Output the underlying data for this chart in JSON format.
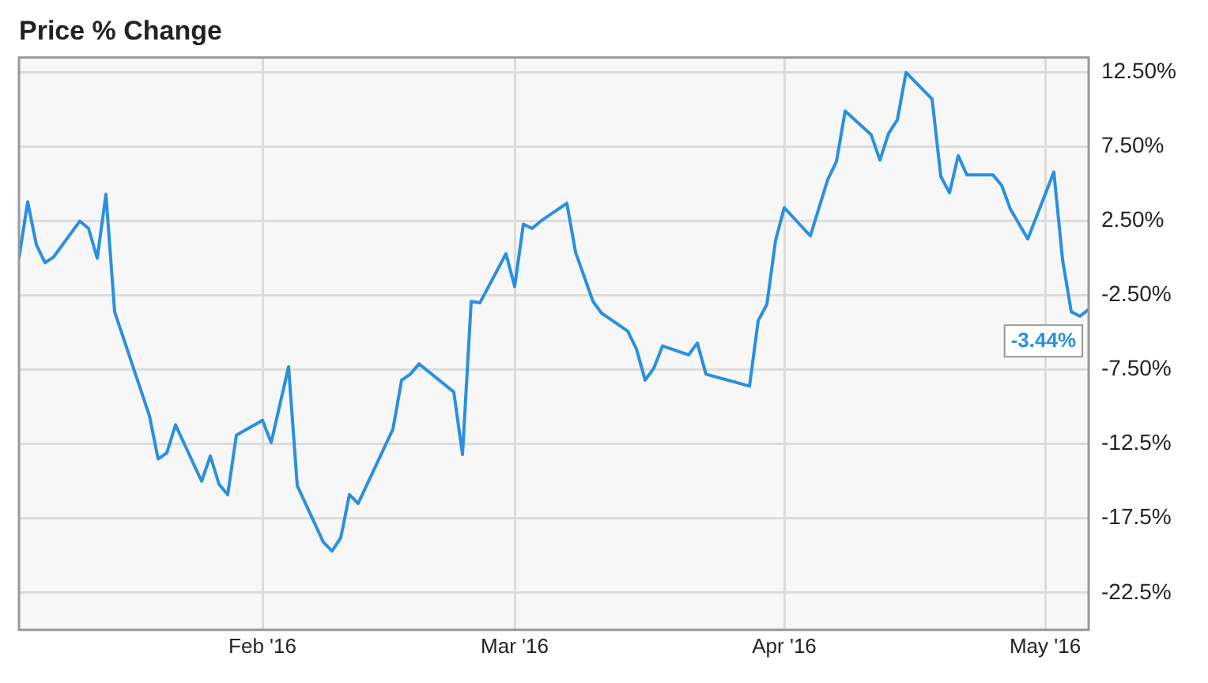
{
  "chart_data": {
    "type": "line",
    "title": "Price % Change",
    "x": [
      "2016-01-04",
      "2016-01-05",
      "2016-01-06",
      "2016-01-07",
      "2016-01-08",
      "2016-01-11",
      "2016-01-12",
      "2016-01-13",
      "2016-01-14",
      "2016-01-15",
      "2016-01-19",
      "2016-01-20",
      "2016-01-21",
      "2016-01-22",
      "2016-01-25",
      "2016-01-26",
      "2016-01-27",
      "2016-01-28",
      "2016-01-29",
      "2016-02-01",
      "2016-02-02",
      "2016-02-04",
      "2016-02-05",
      "2016-02-08",
      "2016-02-09",
      "2016-02-10",
      "2016-02-11",
      "2016-02-12",
      "2016-02-16",
      "2016-02-17",
      "2016-02-18",
      "2016-02-19",
      "2016-02-23",
      "2016-02-24",
      "2016-02-25",
      "2016-02-26",
      "2016-02-29",
      "2016-03-01",
      "2016-03-02",
      "2016-03-03",
      "2016-03-04",
      "2016-03-07",
      "2016-03-08",
      "2016-03-10",
      "2016-03-11",
      "2016-03-14",
      "2016-03-15",
      "2016-03-16",
      "2016-03-17",
      "2016-03-18",
      "2016-03-21",
      "2016-03-22",
      "2016-03-23",
      "2016-03-28",
      "2016-03-29",
      "2016-03-30",
      "2016-03-31",
      "2016-04-01",
      "2016-04-04",
      "2016-04-06",
      "2016-04-07",
      "2016-04-08",
      "2016-04-11",
      "2016-04-12",
      "2016-04-13",
      "2016-04-14",
      "2016-04-15",
      "2016-04-18",
      "2016-04-19",
      "2016-04-20",
      "2016-04-21",
      "2016-04-22",
      "2016-04-25",
      "2016-04-26",
      "2016-04-27",
      "2016-04-29",
      "2016-05-02",
      "2016-05-03",
      "2016-05-04",
      "2016-05-05",
      "2016-05-06"
    ],
    "series": [
      {
        "color": "#2a8fe0",
        "values": [
          0.0,
          3.8,
          0.9,
          -0.3,
          0.1,
          2.5,
          2.0,
          0.0,
          4.3,
          -3.6,
          -10.6,
          -13.5,
          -13.1,
          -11.2,
          -15.0,
          -13.3,
          -15.2,
          -15.9,
          -11.9,
          -10.9,
          -12.4,
          -7.3,
          -15.3,
          -19.1,
          -19.7,
          -18.8,
          -15.9,
          -16.5,
          -11.5,
          -8.2,
          -7.8,
          -7.1,
          -9.0,
          -13.2,
          -2.9,
          -3.0,
          0.3,
          -1.9,
          2.3,
          2.0,
          2.5,
          3.7,
          0.4,
          -2.9,
          -3.7,
          -4.9,
          -6.1,
          -8.2,
          -7.4,
          -5.9,
          -6.5,
          -5.7,
          -7.8,
          -8.6,
          -4.2,
          -3.1,
          1.2,
          3.4,
          1.5,
          5.3,
          6.5,
          9.9,
          8.3,
          6.6,
          8.4,
          9.3,
          12.5,
          10.7,
          5.5,
          4.4,
          6.9,
          5.6,
          5.6,
          4.9,
          3.3,
          1.3,
          5.8,
          -0.1,
          -3.6,
          -3.9,
          -3.44
        ]
      }
    ],
    "xlim": [
      "2016-01-04",
      "2016-05-06"
    ],
    "xticks": [
      {
        "value": "2016-02-01",
        "label": "Feb '16"
      },
      {
        "value": "2016-03-01",
        "label": "Mar '16"
      },
      {
        "value": "2016-04-01",
        "label": "Apr '16"
      },
      {
        "value": "2016-05-01",
        "label": "May '16"
      }
    ],
    "ylim": [
      -25,
      13.5
    ],
    "yticks": [
      {
        "value": -22.5,
        "label": "-22.5%"
      },
      {
        "value": -17.5,
        "label": "-17.5%"
      },
      {
        "value": -12.5,
        "label": "-12.5%"
      },
      {
        "value": -7.5,
        "label": "-7.50%"
      },
      {
        "value": -2.5,
        "label": "-2.50%"
      },
      {
        "value": 2.5,
        "label": "2.50%"
      },
      {
        "value": 7.5,
        "label": "7.50%"
      },
      {
        "value": 12.5,
        "label": "12.50%"
      }
    ],
    "annotations": [
      {
        "text": "-3.44%",
        "x": "2016-05-06",
        "y": -3.44
      }
    ],
    "grid": true,
    "legend": false,
    "marker": "none",
    "line_style": "solid"
  }
}
